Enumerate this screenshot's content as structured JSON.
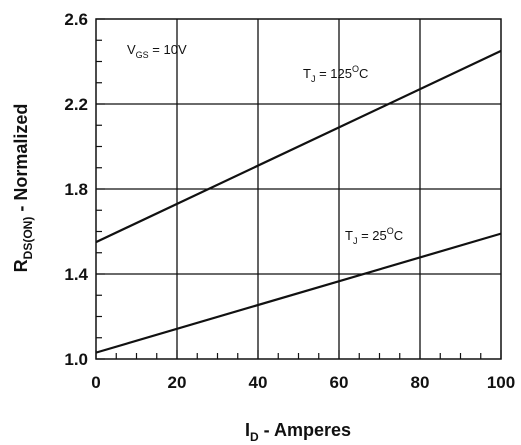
{
  "chart_data": {
    "type": "line",
    "xlabel": {
      "main": "I",
      "sub": "D",
      "rest": " - Amperes"
    },
    "ylabel": {
      "main": "R",
      "sub": "DS(ON)",
      "rest": " - Normalized"
    },
    "xlim": [
      0,
      100
    ],
    "ylim": [
      1.0,
      2.6
    ],
    "x_ticks": [
      0,
      20,
      40,
      60,
      80,
      100
    ],
    "x_tick_labels": [
      "0",
      "20",
      "40",
      "60",
      "80",
      "100"
    ],
    "y_ticks": [
      1.0,
      1.4,
      1.8,
      2.2,
      2.6
    ],
    "y_tick_labels": [
      "1.0",
      "1.4",
      "1.8",
      "2.2",
      "2.6"
    ],
    "grid": true,
    "series": [
      {
        "name": "T_J = 125°C",
        "x": [
          0,
          100
        ],
        "y": [
          1.55,
          2.45
        ]
      },
      {
        "name": "T_J = 25°C",
        "x": [
          0,
          100
        ],
        "y": [
          1.03,
          1.59
        ]
      }
    ],
    "annotations": {
      "vgs": {
        "main": "V",
        "sub": "GS",
        "rest": " = 10V"
      },
      "t125": {
        "main": "T",
        "sub": "J",
        "rest": " = 125",
        "sup": "O",
        "unit": "C"
      },
      "t25": {
        "main": "T",
        "sub": "J",
        "rest": " = 25",
        "sup": "O",
        "unit": "C"
      }
    },
    "colors": {
      "line": "#111111",
      "grid": "#111111",
      "background": "#ffffff"
    }
  }
}
